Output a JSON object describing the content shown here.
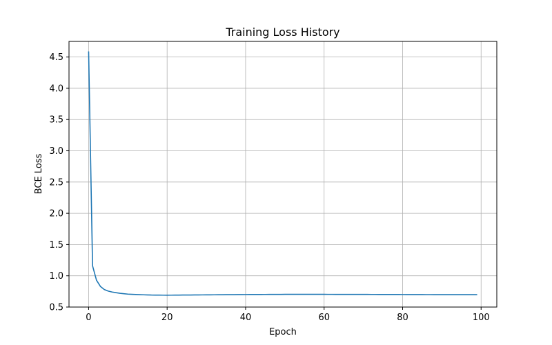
{
  "chart_data": {
    "type": "line",
    "title": "Training Loss History",
    "xlabel": "Epoch",
    "ylabel": "BCE Loss",
    "xlim": [
      -5,
      104
    ],
    "ylim": [
      0.5,
      4.75
    ],
    "xticks": [
      0,
      20,
      40,
      60,
      80,
      100
    ],
    "yticks": [
      0.5,
      1.0,
      1.5,
      2.0,
      2.5,
      3.0,
      3.5,
      4.0,
      4.5
    ],
    "grid": true,
    "colors": {
      "line": "#1f77b4",
      "grid": "#b0b0b0",
      "axes": "#000000"
    },
    "series": [
      {
        "keypoints": [
          [
            0,
            4.59
          ],
          [
            1,
            1.16
          ],
          [
            2,
            0.93
          ],
          [
            3,
            0.83
          ],
          [
            4,
            0.78
          ],
          [
            5,
            0.755
          ],
          [
            6,
            0.74
          ],
          [
            8,
            0.72
          ],
          [
            10,
            0.707
          ],
          [
            13,
            0.698
          ],
          [
            16,
            0.692
          ],
          [
            20,
            0.69
          ],
          [
            30,
            0.695
          ],
          [
            40,
            0.7
          ],
          [
            50,
            0.703
          ],
          [
            60,
            0.703
          ],
          [
            70,
            0.702
          ],
          [
            80,
            0.7
          ],
          [
            90,
            0.698
          ],
          [
            99,
            0.698
          ]
        ]
      }
    ]
  }
}
